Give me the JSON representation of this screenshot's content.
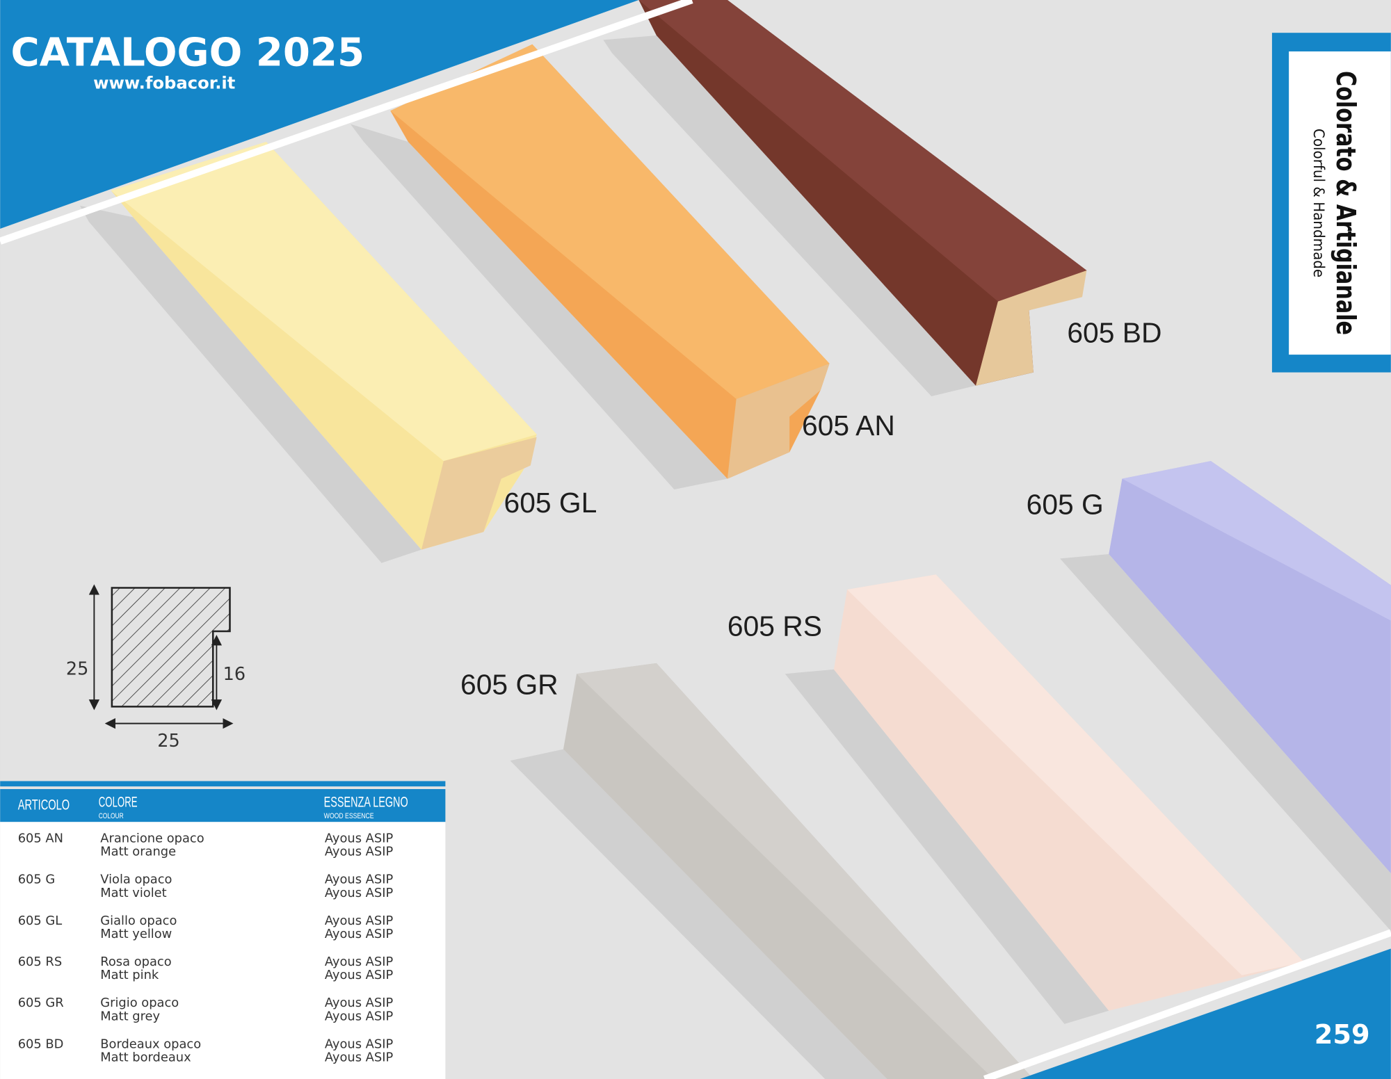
{
  "header": {
    "title": "CATALOGO 2025",
    "url": "www.fobacor.it"
  },
  "side_box": {
    "title": "Colorato & Artigianale",
    "subtitle": "Colorful & Handmade"
  },
  "products": [
    "605 BD",
    "605 AN",
    "605 GL",
    "605 G",
    "605 RS",
    "605 GR"
  ],
  "profile": {
    "height": 25,
    "rebate": 16,
    "width": 25
  },
  "table": {
    "columns": [
      {
        "title": "ARTICOLO"
      },
      {
        "title": "COLORE",
        "subtitle": "COLOUR"
      },
      {
        "title": "ESSENZA LEGNO",
        "subtitle": "WOOD ESSENCE"
      }
    ],
    "rows": [
      {
        "code": "605 AN",
        "colour": [
          "Arancione opaco",
          "Matt orange"
        ],
        "wood": [
          "Ayous ASIP",
          "Ayous ASIP"
        ]
      },
      {
        "code": "605 G",
        "colour": [
          "Viola opaco",
          "Matt violet"
        ],
        "wood": [
          "Ayous ASIP",
          "Ayous ASIP"
        ]
      },
      {
        "code": "605 GL",
        "colour": [
          "Giallo opaco",
          "Matt yellow"
        ],
        "wood": [
          "Ayous ASIP",
          "Ayous ASIP"
        ]
      },
      {
        "code": "605 RS",
        "colour": [
          "Rosa opaco",
          "Matt pink"
        ],
        "wood": [
          "Ayous ASIP",
          "Ayous ASIP"
        ]
      },
      {
        "code": "605 GR",
        "colour": [
          "Grigio opaco",
          "Matt grey"
        ],
        "wood": [
          "Ayous ASIP",
          "Ayous ASIP"
        ]
      },
      {
        "code": "605 BD",
        "colour": [
          "Bordeaux opaco",
          "Matt bordeaux"
        ],
        "wood": [
          "Ayous ASIP",
          "Ayous ASIP"
        ]
      }
    ]
  },
  "page_number": "259"
}
